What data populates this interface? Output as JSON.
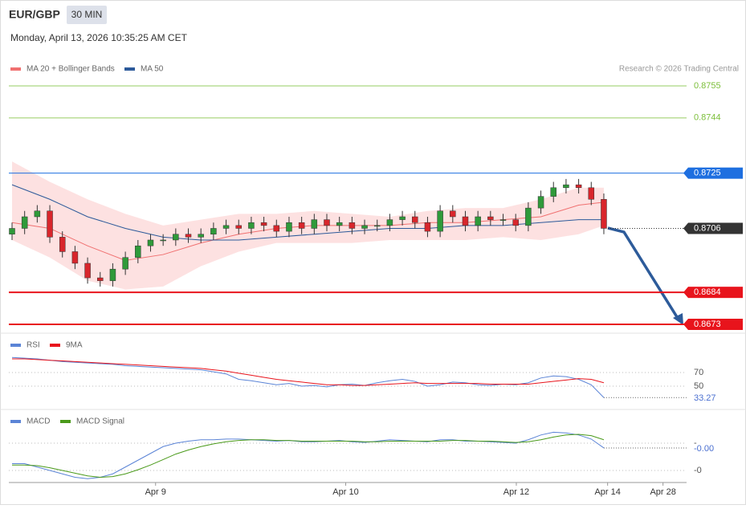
{
  "header": {
    "symbol": "EUR/GBP",
    "interval": "30 MIN",
    "datetime": "Monday, April 13, 2026 10:35:25 AM CET",
    "credit": "Research © 2026 Trading Central"
  },
  "chart_data": [
    {
      "type": "candlestick",
      "legend": [
        {
          "name": "MA 20 + Bollinger Bands",
          "color": "#f07070"
        },
        {
          "name": "MA 50",
          "color": "#2c5a9a"
        }
      ],
      "ylim": [
        0.8673,
        0.8755
      ],
      "open": [
        0.8704,
        0.8706,
        0.871,
        0.8712,
        0.8703,
        0.8698,
        0.8694,
        0.8689,
        0.8688,
        0.8692,
        0.8696,
        0.87,
        0.8702,
        0.8702,
        0.8704,
        0.8703,
        0.8704,
        0.8706,
        0.8707,
        0.8706,
        0.8708,
        0.8707,
        0.8705,
        0.8708,
        0.8706,
        0.8709,
        0.8707,
        0.8708,
        0.8706,
        0.8707,
        0.8707,
        0.8709,
        0.871,
        0.8708,
        0.8705,
        0.8712,
        0.871,
        0.8707,
        0.871,
        0.8709,
        0.8709,
        0.8707,
        0.8713,
        0.8717,
        0.872,
        0.8721,
        0.872,
        0.8716
      ],
      "high": [
        0.8708,
        0.8712,
        0.8714,
        0.8714,
        0.8705,
        0.87,
        0.8696,
        0.8691,
        0.8694,
        0.8698,
        0.8702,
        0.8704,
        0.8704,
        0.8706,
        0.8706,
        0.8706,
        0.8708,
        0.8709,
        0.8709,
        0.871,
        0.871,
        0.8709,
        0.871,
        0.871,
        0.8711,
        0.8711,
        0.871,
        0.871,
        0.8709,
        0.8709,
        0.8711,
        0.8712,
        0.8712,
        0.871,
        0.8714,
        0.8714,
        0.8712,
        0.8712,
        0.8712,
        0.8711,
        0.8711,
        0.8715,
        0.8719,
        0.8722,
        0.8723,
        0.8723,
        0.8722,
        0.8718
      ],
      "low": [
        0.8702,
        0.8704,
        0.8708,
        0.8701,
        0.8696,
        0.8692,
        0.8687,
        0.8686,
        0.8686,
        0.869,
        0.8694,
        0.8698,
        0.87,
        0.87,
        0.8701,
        0.8701,
        0.8702,
        0.8704,
        0.8704,
        0.8704,
        0.8705,
        0.8703,
        0.8703,
        0.8704,
        0.8704,
        0.8705,
        0.8705,
        0.8704,
        0.8704,
        0.8705,
        0.8705,
        0.8707,
        0.8706,
        0.8703,
        0.8703,
        0.8708,
        0.8705,
        0.8705,
        0.8707,
        0.8707,
        0.8705,
        0.8705,
        0.8711,
        0.8715,
        0.8718,
        0.8718,
        0.8714,
        0.8704
      ],
      "close": [
        0.8706,
        0.871,
        0.8712,
        0.8703,
        0.8698,
        0.8694,
        0.8689,
        0.8688,
        0.8692,
        0.8696,
        0.87,
        0.8702,
        0.8702,
        0.8704,
        0.8703,
        0.8704,
        0.8706,
        0.8707,
        0.8706,
        0.8708,
        0.8707,
        0.8705,
        0.8708,
        0.8706,
        0.8709,
        0.8707,
        0.8708,
        0.8706,
        0.8707,
        0.8707,
        0.8709,
        0.871,
        0.8708,
        0.8705,
        0.8712,
        0.871,
        0.8707,
        0.871,
        0.8709,
        0.8709,
        0.8707,
        0.8713,
        0.8717,
        0.872,
        0.8721,
        0.872,
        0.8716,
        0.8706
      ],
      "overlay_x": [
        0,
        3,
        6,
        9,
        12,
        15,
        18,
        21,
        24,
        27,
        30,
        33,
        36,
        39,
        42,
        45,
        47
      ],
      "ma20": [
        0.8708,
        0.8706,
        0.87,
        0.8695,
        0.8697,
        0.8701,
        0.8704,
        0.8706,
        0.8707,
        0.8707,
        0.8707,
        0.8708,
        0.8708,
        0.8709,
        0.871,
        0.8714,
        0.8715
      ],
      "bb_upper": [
        0.8729,
        0.8722,
        0.8716,
        0.8711,
        0.8707,
        0.8709,
        0.8711,
        0.8711,
        0.8712,
        0.8711,
        0.871,
        0.8712,
        0.8713,
        0.8713,
        0.8716,
        0.872,
        0.872
      ],
      "bb_lower": [
        0.8702,
        0.8696,
        0.8688,
        0.8685,
        0.8686,
        0.8693,
        0.8698,
        0.8701,
        0.8701,
        0.8701,
        0.8702,
        0.8702,
        0.8702,
        0.8703,
        0.8702,
        0.8704,
        0.8707
      ],
      "ma50": [
        0.8721,
        0.8716,
        0.871,
        0.8706,
        0.8703,
        0.8702,
        0.8702,
        0.8703,
        0.8704,
        0.8705,
        0.8706,
        0.8706,
        0.8707,
        0.8707,
        0.8708,
        0.8709,
        0.8709
      ],
      "levels": [
        {
          "value": 0.8755,
          "color": "#7cbf3a",
          "style": "resistance"
        },
        {
          "value": 0.8744,
          "color": "#7cbf3a",
          "style": "resistance"
        },
        {
          "value": 0.8725,
          "color": "#1e6fe0",
          "style": "pivot"
        },
        {
          "value": 0.8706,
          "color": "#333333",
          "style": "last"
        },
        {
          "value": 0.8684,
          "color": "#e8141c",
          "style": "support"
        },
        {
          "value": 0.8673,
          "color": "#e8141c",
          "style": "support"
        }
      ],
      "xticks": [
        {
          "value": 11.4,
          "label": "Apr 9"
        },
        {
          "value": 26.5,
          "label": "Apr 10"
        },
        {
          "value": 40.05,
          "label": "Apr 12"
        },
        {
          "value": 47.3,
          "label": "Apr 14"
        },
        {
          "value": 51.7,
          "label": "Apr 28"
        }
      ]
    },
    {
      "type": "line",
      "series": [
        {
          "name": "RSI",
          "color": "#5b84d6",
          "values": [
            92,
            91,
            90,
            88,
            86,
            85,
            84,
            83,
            82,
            80,
            79,
            78,
            77,
            76,
            75,
            74,
            71,
            68,
            60,
            58,
            55,
            52,
            54,
            50,
            51,
            49,
            52,
            53,
            51,
            55,
            58,
            60,
            57,
            50,
            52,
            56,
            55,
            52,
            51,
            53,
            52,
            55,
            62,
            65,
            64,
            60,
            52,
            33.27
          ]
        },
        {
          "name": "9MA",
          "color": "#e8141c",
          "values": [
            90,
            90,
            89,
            88,
            87,
            86,
            85,
            84,
            83,
            82,
            81,
            80,
            79,
            78,
            77,
            76,
            74,
            72,
            69,
            66,
            63,
            60,
            58,
            56,
            54,
            52,
            52,
            51,
            51,
            52,
            53,
            54,
            55,
            54,
            54,
            54,
            54,
            54,
            53,
            53,
            53,
            53,
            55,
            57,
            59,
            61,
            60,
            55
          ]
        }
      ],
      "ylim": [
        20,
        100
      ],
      "yticks": [
        70,
        50
      ]
    },
    {
      "type": "line",
      "series": [
        {
          "name": "MACD",
          "color": "#5b84d6",
          "values": [
            -0.0003,
            -0.0003,
            -0.00035,
            -0.0004,
            -0.00045,
            -0.0005,
            -0.00052,
            -0.0005,
            -0.00045,
            -0.00035,
            -0.00025,
            -0.00015,
            -5e-05,
            0,
            3e-05,
            5e-05,
            5e-05,
            6e-05,
            6e-05,
            5e-05,
            4e-05,
            3e-05,
            4e-05,
            2e-05,
            2e-05,
            3e-05,
            4e-05,
            2e-05,
            1e-05,
            3e-05,
            5e-05,
            4e-05,
            3e-05,
            2e-05,
            5e-05,
            5e-05,
            3e-05,
            3e-05,
            2e-05,
            1e-05,
            0,
            5e-05,
            0.00012,
            0.00016,
            0.00015,
            0.00012,
            6e-05,
            -7e-05
          ],
          "value_labels": {
            "47": "-0.00"
          }
        },
        {
          "name": "MACD Signal",
          "color": "#4a9a1a",
          "values": [
            -0.00032,
            -0.00032,
            -0.00033,
            -0.00036,
            -0.0004,
            -0.00044,
            -0.00048,
            -0.0005,
            -0.00049,
            -0.00045,
            -0.00039,
            -0.00032,
            -0.00024,
            -0.00016,
            -0.0001,
            -5e-05,
            -1e-05,
            2e-05,
            4e-05,
            5e-05,
            5e-05,
            4e-05,
            4e-05,
            3e-05,
            3e-05,
            3e-05,
            3e-05,
            3e-05,
            2e-05,
            2e-05,
            3e-05,
            3e-05,
            3e-05,
            3e-05,
            3e-05,
            4e-05,
            4e-05,
            3e-05,
            3e-05,
            2e-05,
            1e-05,
            2e-05,
            5e-05,
            9e-05,
            0.00012,
            0.00013,
            0.00011,
            5e-05
          ]
        }
      ],
      "ylim": [
        -0.0006,
        0.0002
      ],
      "yticks": [
        {
          "value": 0,
          "label": "-"
        },
        {
          "value": -0.0004,
          "label": "-0"
        }
      ]
    }
  ]
}
